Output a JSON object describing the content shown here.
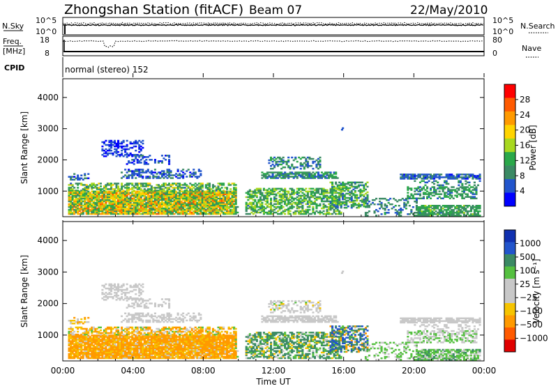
{
  "header": {
    "title": "Zhongshan Station (fitACF)",
    "beam": "Beam 07",
    "date": "22/May/2010"
  },
  "colors": {
    "power_scale": [
      "#0000ff",
      "#2255cc",
      "#3b8a64",
      "#2aa84a",
      "#a8d820",
      "#ffd400",
      "#ff9a00",
      "#ff5a00",
      "#ff0000"
    ],
    "velocity_scale": [
      "#e00000",
      "#ff5a00",
      "#ff9a00",
      "#f6c400",
      "#c8c8c8",
      "#c8c8c8",
      "#55c040",
      "#3b8a64",
      "#2255cc",
      "#1030b0"
    ]
  },
  "nsky_panel": {
    "left_label": "N.Sky",
    "left_ticks": [
      "10^5",
      "10^0"
    ],
    "right_label": "N.Search",
    "right_ticks": [
      "10^5",
      "10^0"
    ]
  },
  "freq_panel": {
    "left_label_1": "Freq.",
    "left_label_2": "[MHz]",
    "left_ticks": [
      "18",
      "8"
    ],
    "right_label": "Nave",
    "right_ticks": [
      "80",
      "0"
    ],
    "cpid_label": "CPID",
    "cpid_value": "normal (stereo) 152"
  },
  "chart_data": [
    {
      "type": "heatmap",
      "name": "Power",
      "ylabel": "Slant Range [km]",
      "xlabel": "Time UT",
      "xlim_hours": [
        0,
        24
      ],
      "ylim_km": [
        180,
        4600
      ],
      "yticks": [
        "1000",
        "2000",
        "3000",
        "4000"
      ],
      "colorbar_label": "Power [dB]",
      "colorbar_ticks": [
        "4",
        "8",
        "12",
        "16",
        "20",
        "24",
        "28"
      ]
    },
    {
      "type": "heatmap",
      "name": "Velocity",
      "ylabel": "Slant Range [km]",
      "xlabel": "Time UT",
      "xlim_hours": [
        0,
        24
      ],
      "ylim_km": [
        180,
        4600
      ],
      "yticks": [
        "1000",
        "2000",
        "3000",
        "4000"
      ],
      "colorbar_label": "Velocity [m s⁻¹]",
      "colorbar_ticks": [
        "1000",
        "500",
        "100",
        "25",
        "−25",
        "−100",
        "−500",
        "−1000"
      ]
    }
  ],
  "time_axis": {
    "ticks": [
      "00:00",
      "04:00",
      "08:00",
      "12:00",
      "16:00",
      "20:00",
      "00:00"
    ],
    "label": "Time UT"
  }
}
